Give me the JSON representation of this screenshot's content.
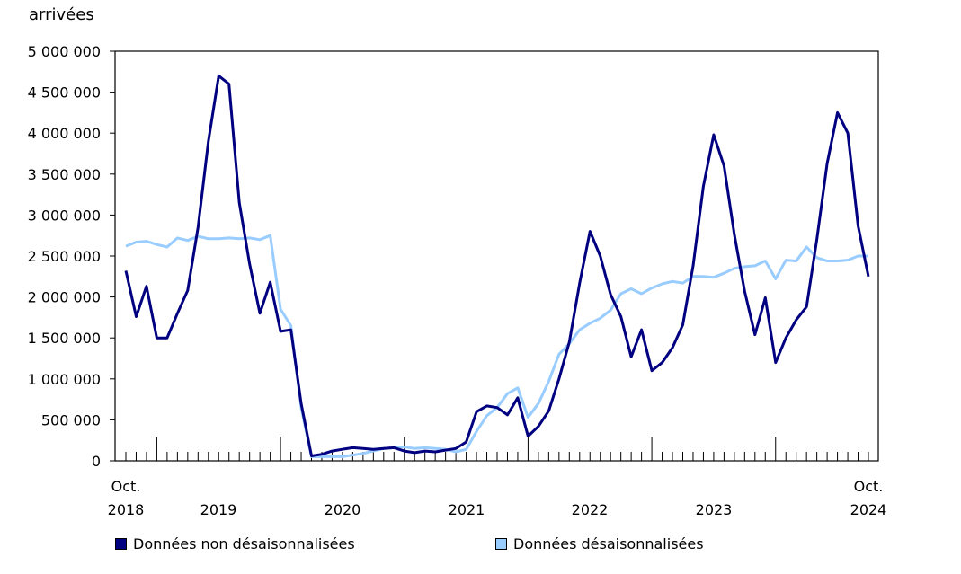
{
  "chart_data": {
    "type": "line",
    "ylabel": "arrivées",
    "ylim": [
      0,
      5000000
    ],
    "yticks": [
      0,
      500000,
      1000000,
      1500000,
      2000000,
      2500000,
      3000000,
      3500000,
      4000000,
      4500000,
      5000000
    ],
    "ytick_labels": [
      "0",
      "500 000",
      "1 000 000",
      "1 500 000",
      "2 000 000",
      "2 500 000",
      "3 000 000",
      "3 500 000",
      "4 000 000",
      "4 500 000",
      "5 000 000"
    ],
    "x_start_label": {
      "month": "Oct.",
      "year": "2018"
    },
    "x_end_label": {
      "month": "Oct.",
      "year": "2024"
    },
    "year_labels": [
      "2019",
      "2020",
      "2021",
      "2022",
      "2023"
    ],
    "series": [
      {
        "name": "Données non désaisonnalisées",
        "color": "#000080",
        "values": [
          2320000,
          1760000,
          2130000,
          1500000,
          1500000,
          1800000,
          2080000,
          2850000,
          3900000,
          4700000,
          4600000,
          3150000,
          2400000,
          1800000,
          2180000,
          1580000,
          1600000,
          700000,
          60000,
          80000,
          120000,
          140000,
          160000,
          150000,
          140000,
          150000,
          160000,
          120000,
          100000,
          120000,
          110000,
          130000,
          150000,
          230000,
          600000,
          670000,
          650000,
          560000,
          770000,
          300000,
          420000,
          610000,
          1000000,
          1450000,
          2170000,
          2800000,
          2500000,
          2030000,
          1760000,
          1270000,
          1600000,
          1100000,
          1200000,
          1380000,
          1660000,
          2380000,
          3350000,
          3980000,
          3600000,
          2760000,
          2070000,
          1540000,
          1990000,
          1200000,
          1500000,
          1720000,
          1880000,
          2700000,
          3630000,
          4250000,
          4000000,
          2870000,
          2250000
        ]
      },
      {
        "name": "Données désaisonnalisées",
        "color": "#99ccff",
        "values": [
          2620000,
          2670000,
          2680000,
          2640000,
          2610000,
          2720000,
          2690000,
          2740000,
          2710000,
          2710000,
          2720000,
          2710000,
          2720000,
          2700000,
          2750000,
          1850000,
          1650000,
          650000,
          50000,
          50000,
          50000,
          50000,
          70000,
          90000,
          120000,
          150000,
          160000,
          170000,
          150000,
          160000,
          150000,
          140000,
          110000,
          140000,
          360000,
          550000,
          650000,
          820000,
          890000,
          530000,
          700000,
          970000,
          1300000,
          1430000,
          1600000,
          1680000,
          1740000,
          1840000,
          2040000,
          2100000,
          2040000,
          2110000,
          2160000,
          2190000,
          2170000,
          2250000,
          2250000,
          2240000,
          2290000,
          2350000,
          2370000,
          2380000,
          2440000,
          2220000,
          2450000,
          2440000,
          2610000,
          2480000,
          2440000,
          2440000,
          2450000,
          2500000,
          2500000
        ]
      }
    ]
  }
}
